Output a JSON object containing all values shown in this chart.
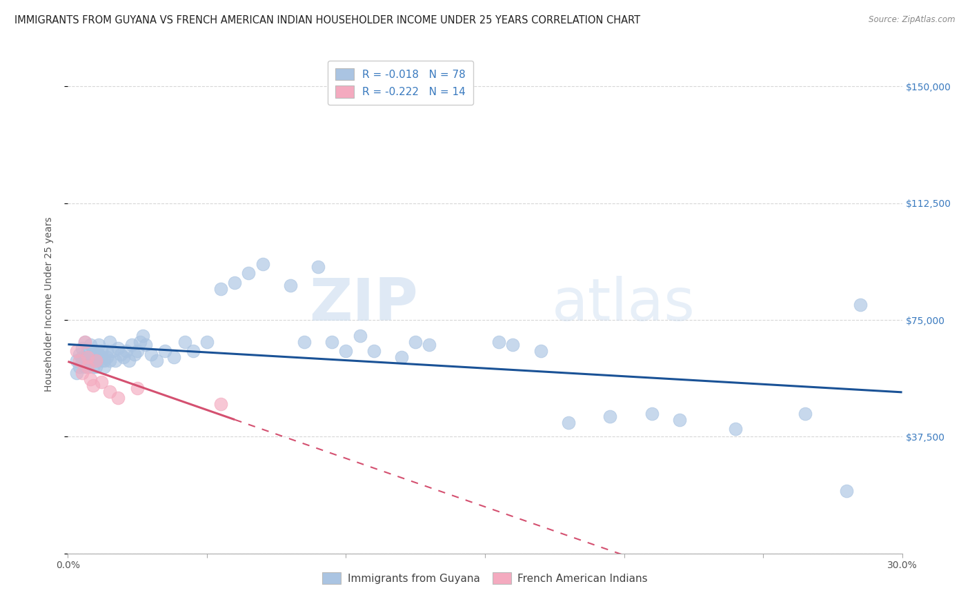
{
  "title": "IMMIGRANTS FROM GUYANA VS FRENCH AMERICAN INDIAN HOUSEHOLDER INCOME UNDER 25 YEARS CORRELATION CHART",
  "source": "Source: ZipAtlas.com",
  "ylabel": "Householder Income Under 25 years",
  "xlim": [
    0.0,
    0.3
  ],
  "ylim": [
    0,
    160000
  ],
  "legend_R_blue": "-0.018",
  "legend_N_blue": "78",
  "legend_R_pink": "-0.222",
  "legend_N_pink": "14",
  "blue_color": "#aac4e2",
  "pink_color": "#f4aabf",
  "blue_line_color": "#1a5296",
  "pink_line_color": "#d45070",
  "watermark_zip": "ZIP",
  "watermark_atlas": "atlas",
  "blue_scatter_x": [
    0.003,
    0.003,
    0.004,
    0.004,
    0.005,
    0.005,
    0.005,
    0.006,
    0.006,
    0.006,
    0.007,
    0.007,
    0.007,
    0.008,
    0.008,
    0.008,
    0.009,
    0.009,
    0.01,
    0.01,
    0.01,
    0.01,
    0.011,
    0.011,
    0.012,
    0.012,
    0.012,
    0.013,
    0.013,
    0.014,
    0.014,
    0.015,
    0.015,
    0.016,
    0.017,
    0.018,
    0.019,
    0.02,
    0.021,
    0.022,
    0.023,
    0.024,
    0.025,
    0.026,
    0.027,
    0.028,
    0.03,
    0.032,
    0.035,
    0.038,
    0.042,
    0.045,
    0.05,
    0.055,
    0.06,
    0.065,
    0.07,
    0.08,
    0.085,
    0.09,
    0.095,
    0.1,
    0.105,
    0.11,
    0.12,
    0.125,
    0.13,
    0.155,
    0.16,
    0.17,
    0.18,
    0.195,
    0.21,
    0.22,
    0.24,
    0.265,
    0.28,
    0.285
  ],
  "blue_scatter_y": [
    62000,
    58000,
    60000,
    64000,
    62000,
    63000,
    66000,
    68000,
    62000,
    60000,
    62000,
    65000,
    60000,
    63000,
    67000,
    62000,
    65000,
    60000,
    62000,
    63000,
    65000,
    60000,
    67000,
    64000,
    62000,
    65000,
    63000,
    60000,
    62000,
    63000,
    65000,
    62000,
    68000,
    65000,
    62000,
    66000,
    64000,
    63000,
    65000,
    62000,
    67000,
    64000,
    65000,
    68000,
    70000,
    67000,
    64000,
    62000,
    65000,
    63000,
    68000,
    65000,
    68000,
    85000,
    87000,
    90000,
    93000,
    86000,
    68000,
    92000,
    68000,
    65000,
    70000,
    65000,
    63000,
    68000,
    67000,
    68000,
    67000,
    65000,
    42000,
    44000,
    45000,
    43000,
    40000,
    45000,
    20000,
    80000
  ],
  "pink_scatter_x": [
    0.003,
    0.004,
    0.005,
    0.006,
    0.007,
    0.007,
    0.008,
    0.009,
    0.01,
    0.012,
    0.015,
    0.018,
    0.025,
    0.055
  ],
  "pink_scatter_y": [
    65000,
    62000,
    58000,
    68000,
    63000,
    60000,
    56000,
    54000,
    62000,
    55000,
    52000,
    50000,
    53000,
    48000
  ],
  "title_fontsize": 10.5,
  "axis_fontsize": 10,
  "tick_fontsize": 10,
  "legend_fontsize": 11
}
